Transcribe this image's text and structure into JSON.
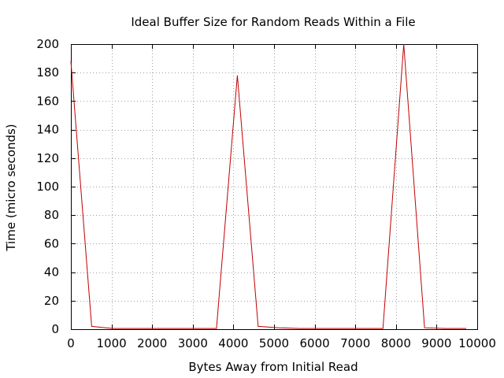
{
  "chart_data": {
    "type": "line",
    "title": "Ideal Buffer Size for Random Reads Within a File",
    "xlabel": "Bytes Away from Initial Read",
    "ylabel": "Time (micro seconds)",
    "xlim": [
      0,
      10000
    ],
    "ylim": [
      0,
      200
    ],
    "x_ticks": [
      0,
      1000,
      2000,
      3000,
      4000,
      5000,
      6000,
      7000,
      8000,
      9000,
      10000
    ],
    "y_ticks": [
      0,
      20,
      40,
      60,
      80,
      100,
      120,
      140,
      160,
      180,
      200
    ],
    "grid": true,
    "legend": "none",
    "series": [
      {
        "color": "#c00000",
        "x": [
          0,
          512,
          1024,
          1536,
          2048,
          2560,
          3072,
          3584,
          4096,
          4608,
          5120,
          5632,
          6144,
          6656,
          7168,
          7680,
          8192,
          8704,
          9216,
          9728
        ],
        "y": [
          188,
          2,
          0.5,
          0.5,
          0.5,
          0.5,
          0.5,
          0.5,
          178,
          2,
          1,
          0.5,
          0.5,
          0.5,
          0.5,
          0.5,
          200,
          1,
          0.5,
          0.5
        ]
      }
    ]
  }
}
